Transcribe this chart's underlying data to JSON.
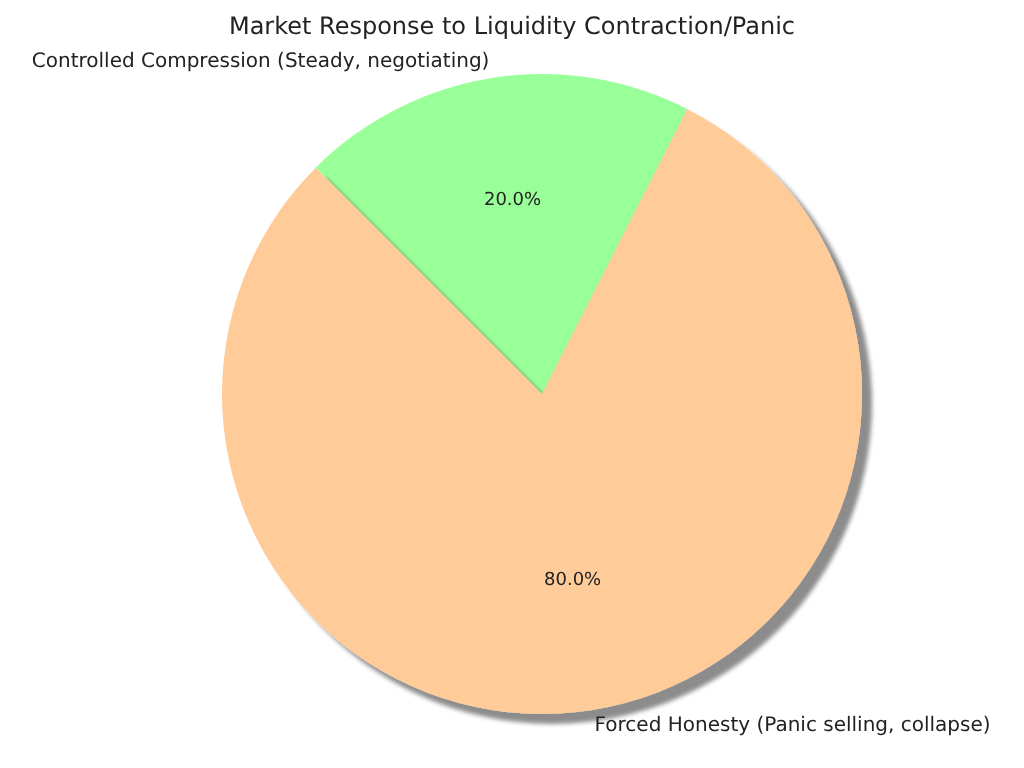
{
  "chart_data": {
    "type": "pie",
    "title": "Market Response to Liquidity Contraction/Panic",
    "categories": [
      "Controlled Compression (Steady, negotiating)",
      "Forced Honesty (Panic selling, collapse)"
    ],
    "values": [
      20,
      80
    ],
    "colors": [
      "#99ff99",
      "#ffcc99"
    ],
    "value_labels": [
      "20.0%",
      "80.0%"
    ],
    "legend": false
  }
}
